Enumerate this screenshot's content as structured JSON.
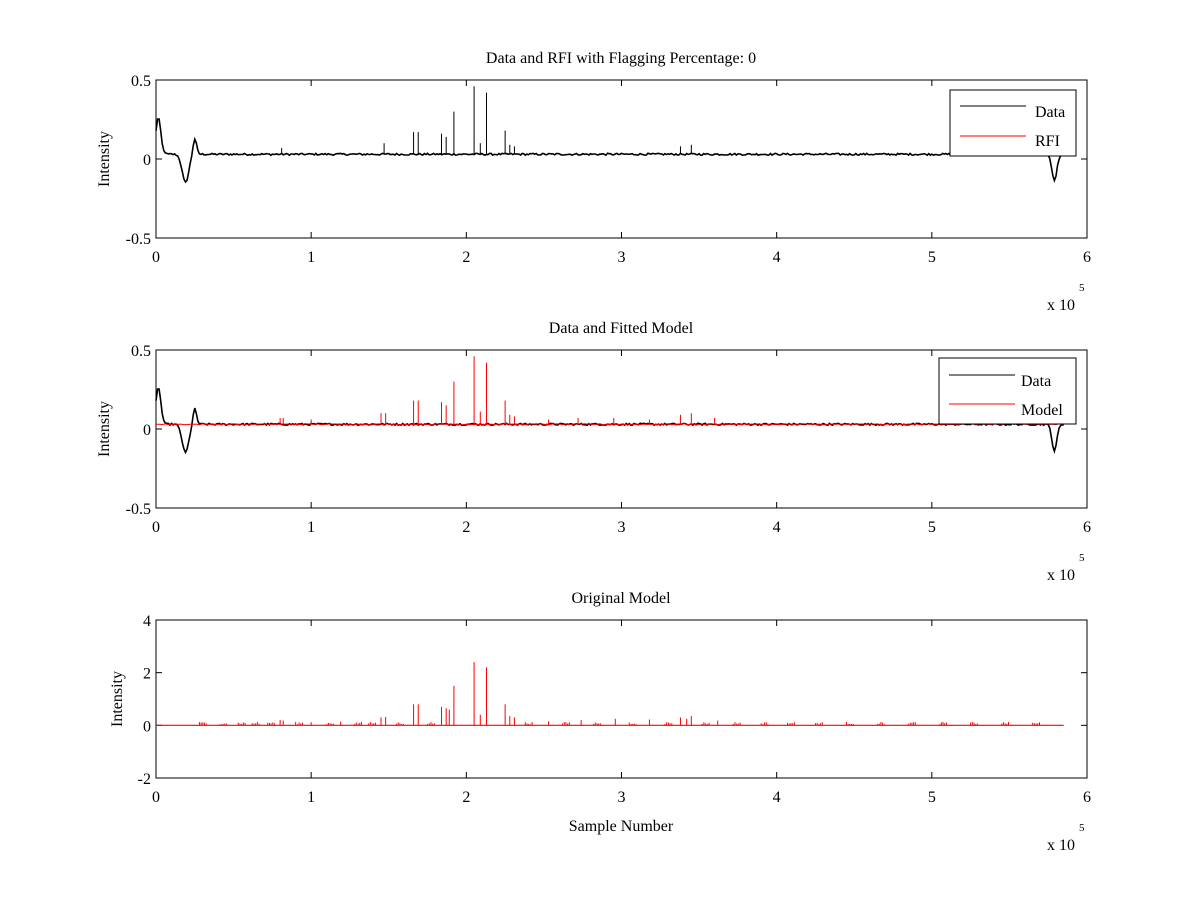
{
  "colors": {
    "data": "#000000",
    "rfi": "#ff0000",
    "axis": "#000000",
    "background": "#ffffff"
  },
  "chart_data": [
    {
      "type": "line",
      "title": "Data and RFI with Flagging Percentage: 0",
      "xlabel": "",
      "ylabel": "Intensity",
      "xlim": [
        0,
        600000
      ],
      "ylim": [
        -0.5,
        0.5
      ],
      "xticks": [
        0,
        1,
        2,
        3,
        4,
        5,
        6
      ],
      "xticklabels": [
        "0",
        "1",
        "2",
        "3",
        "4",
        "5",
        "6"
      ],
      "yticks": [
        -0.5,
        0,
        0.5
      ],
      "yticklabels": [
        "-0.5",
        "0",
        "0.5"
      ],
      "x_exponent_label": "x 10",
      "x_exponent": "5",
      "grid": false,
      "legend_position": "top-right",
      "baseline": 0.03,
      "noise": 0.006,
      "baseline_x_range": [
        0,
        585000
      ],
      "features": [
        {
          "x": 1500,
          "y": 0.26,
          "w": 2200
        },
        {
          "x": 19000,
          "y": -0.15,
          "w": 3000
        },
        {
          "x": 25000,
          "y": 0.13,
          "w": 1600
        },
        {
          "x": 579000,
          "y": -0.14,
          "w": 2200
        }
      ],
      "spikes": [
        {
          "x": 166000,
          "y": 0.17
        },
        {
          "x": 169000,
          "y": 0.17
        },
        {
          "x": 184000,
          "y": 0.16
        },
        {
          "x": 187000,
          "y": 0.14
        },
        {
          "x": 192000,
          "y": 0.3
        },
        {
          "x": 205000,
          "y": 0.46
        },
        {
          "x": 209000,
          "y": 0.1
        },
        {
          "x": 213000,
          "y": 0.42
        },
        {
          "x": 225000,
          "y": 0.18
        },
        {
          "x": 228000,
          "y": 0.09
        },
        {
          "x": 231000,
          "y": 0.08
        },
        {
          "x": 147000,
          "y": 0.1
        },
        {
          "x": 81000,
          "y": 0.07
        },
        {
          "x": 345000,
          "y": 0.09
        },
        {
          "x": 338000,
          "y": 0.08
        }
      ],
      "series": [
        {
          "name": "Data",
          "color": "#000000"
        },
        {
          "name": "RFI",
          "color": "#ff0000"
        }
      ]
    },
    {
      "type": "line",
      "title": "Data and Fitted Model",
      "xlabel": "",
      "ylabel": "Intensity",
      "xlim": [
        0,
        600000
      ],
      "ylim": [
        -0.5,
        0.5
      ],
      "xticks": [
        0,
        1,
        2,
        3,
        4,
        5,
        6
      ],
      "xticklabels": [
        "0",
        "1",
        "2",
        "3",
        "4",
        "5",
        "6"
      ],
      "yticks": [
        -0.5,
        0,
        0.5
      ],
      "yticklabels": [
        "-0.5",
        "0",
        "0.5"
      ],
      "x_exponent_label": "x 10",
      "x_exponent": "5",
      "grid": false,
      "legend_position": "top-right",
      "baseline": 0.03,
      "noise": 0.006,
      "baseline_x_range": [
        0,
        585000
      ],
      "features": [
        {
          "x": 1500,
          "y": 0.26,
          "w": 2200
        },
        {
          "x": 19000,
          "y": -0.15,
          "w": 3000
        },
        {
          "x": 25000,
          "y": 0.13,
          "w": 1600
        },
        {
          "x": 579000,
          "y": -0.14,
          "w": 2200
        }
      ],
      "model_spikes": [
        {
          "x": 166000,
          "y": 0.18
        },
        {
          "x": 169000,
          "y": 0.18
        },
        {
          "x": 184000,
          "y": 0.17
        },
        {
          "x": 187000,
          "y": 0.15
        },
        {
          "x": 192000,
          "y": 0.3
        },
        {
          "x": 205000,
          "y": 0.46
        },
        {
          "x": 209000,
          "y": 0.11
        },
        {
          "x": 213000,
          "y": 0.42
        },
        {
          "x": 225000,
          "y": 0.18
        },
        {
          "x": 228000,
          "y": 0.09
        },
        {
          "x": 231000,
          "y": 0.08
        },
        {
          "x": 145000,
          "y": 0.1
        },
        {
          "x": 148000,
          "y": 0.1
        },
        {
          "x": 338000,
          "y": 0.09
        },
        {
          "x": 345000,
          "y": 0.1
        },
        {
          "x": 80000,
          "y": 0.07
        },
        {
          "x": 82000,
          "y": 0.07
        },
        {
          "x": 100000,
          "y": 0.06
        },
        {
          "x": 253000,
          "y": 0.06
        },
        {
          "x": 272000,
          "y": 0.07
        },
        {
          "x": 295000,
          "y": 0.07
        },
        {
          "x": 318000,
          "y": 0.06
        },
        {
          "x": 360000,
          "y": 0.07
        }
      ],
      "series": [
        {
          "name": "Data",
          "color": "#000000"
        },
        {
          "name": "Model",
          "color": "#ff0000"
        }
      ]
    },
    {
      "type": "line",
      "title": "Original Model",
      "xlabel": "Sample Number",
      "ylabel": "Intensity",
      "xlim": [
        0,
        600000
      ],
      "ylim": [
        -2,
        4
      ],
      "xticks": [
        0,
        1,
        2,
        3,
        4,
        5,
        6
      ],
      "xticklabels": [
        "0",
        "1",
        "2",
        "3",
        "4",
        "5",
        "6"
      ],
      "yticks": [
        -2,
        0,
        2,
        4
      ],
      "yticklabels": [
        "-2",
        "0",
        "2",
        "4"
      ],
      "x_exponent_label": "x 10",
      "x_exponent": "5",
      "grid": false,
      "baseline": 0,
      "baseline_x_range": [
        0,
        585000
      ],
      "spikes": [
        {
          "x": 166000,
          "y": 0.8
        },
        {
          "x": 169000,
          "y": 0.8
        },
        {
          "x": 184000,
          "y": 0.7
        },
        {
          "x": 187000,
          "y": 0.65
        },
        {
          "x": 189000,
          "y": 0.6
        },
        {
          "x": 192000,
          "y": 1.5
        },
        {
          "x": 205000,
          "y": 2.4
        },
        {
          "x": 209000,
          "y": 0.4
        },
        {
          "x": 213000,
          "y": 2.2
        },
        {
          "x": 225000,
          "y": 0.8
        },
        {
          "x": 228000,
          "y": 0.35
        },
        {
          "x": 231000,
          "y": 0.3
        },
        {
          "x": 145000,
          "y": 0.3
        },
        {
          "x": 148000,
          "y": 0.32
        },
        {
          "x": 80000,
          "y": 0.2
        },
        {
          "x": 82000,
          "y": 0.18
        },
        {
          "x": 100000,
          "y": 0.12
        },
        {
          "x": 119000,
          "y": 0.14
        },
        {
          "x": 338000,
          "y": 0.3
        },
        {
          "x": 342000,
          "y": 0.25
        },
        {
          "x": 345000,
          "y": 0.35
        },
        {
          "x": 318000,
          "y": 0.22
        },
        {
          "x": 296000,
          "y": 0.25
        },
        {
          "x": 274000,
          "y": 0.2
        },
        {
          "x": 253000,
          "y": 0.15
        },
        {
          "x": 362000,
          "y": 0.18
        }
      ],
      "clusters": [
        28000,
        41000,
        53000,
        62000,
        72000,
        90000,
        110000,
        128000,
        137000,
        155000,
        175000,
        238000,
        262000,
        282000,
        305000,
        328000,
        352000,
        372000,
        390000,
        407000,
        425000,
        445000,
        465000,
        485000,
        505000,
        525000,
        545000,
        565000
      ],
      "series": [
        {
          "name": "",
          "color": "#ff0000"
        }
      ]
    }
  ]
}
